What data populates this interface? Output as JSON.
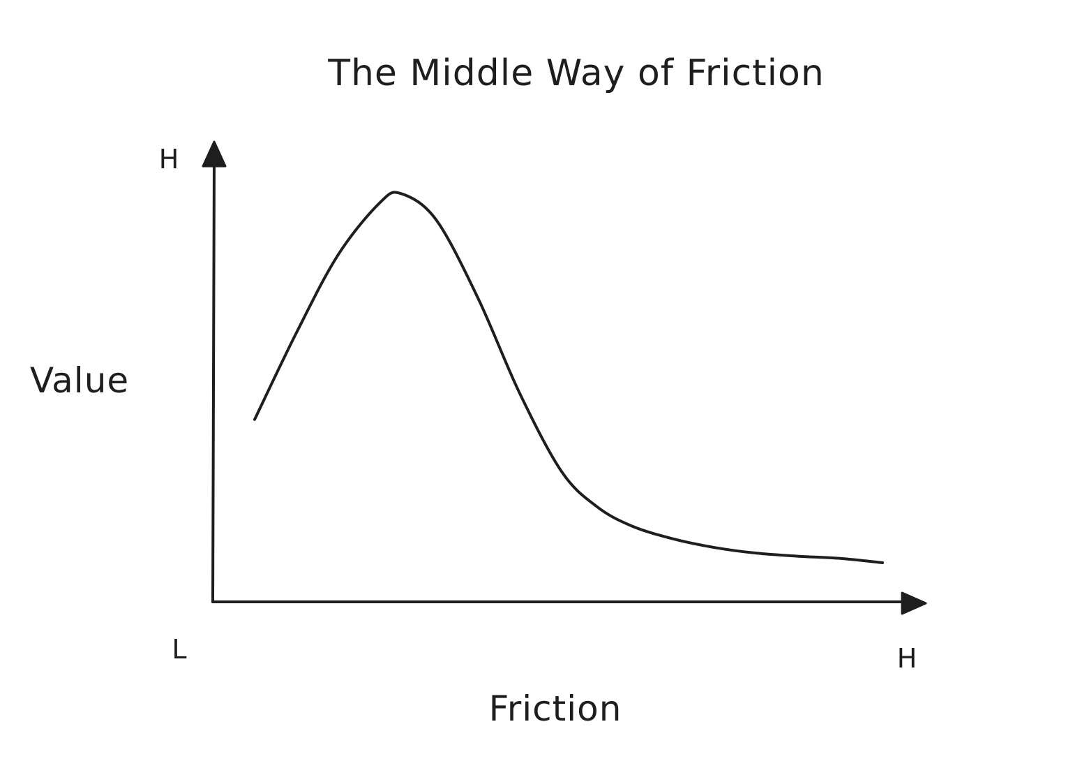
{
  "chart_data": {
    "type": "line",
    "title": "The Middle Way of Friction",
    "xlabel": "Friction",
    "ylabel": "Value",
    "x_ticks": {
      "low": "L",
      "high": "H"
    },
    "y_ticks": {
      "low": "L",
      "high": "H"
    },
    "xlim": [
      0,
      1
    ],
    "ylim": [
      0,
      1
    ],
    "grid": false,
    "series": [
      {
        "x": [
          0.06,
          0.12,
          0.18,
          0.24,
          0.27,
          0.32,
          0.38,
          0.44,
          0.5,
          0.55,
          0.6,
          0.66,
          0.72,
          0.78,
          0.84,
          0.9,
          0.96
        ],
        "y": [
          0.42,
          0.62,
          0.8,
          0.92,
          0.94,
          0.88,
          0.7,
          0.48,
          0.3,
          0.22,
          0.175,
          0.145,
          0.125,
          0.112,
          0.105,
          0.1,
          0.09
        ]
      }
    ]
  }
}
